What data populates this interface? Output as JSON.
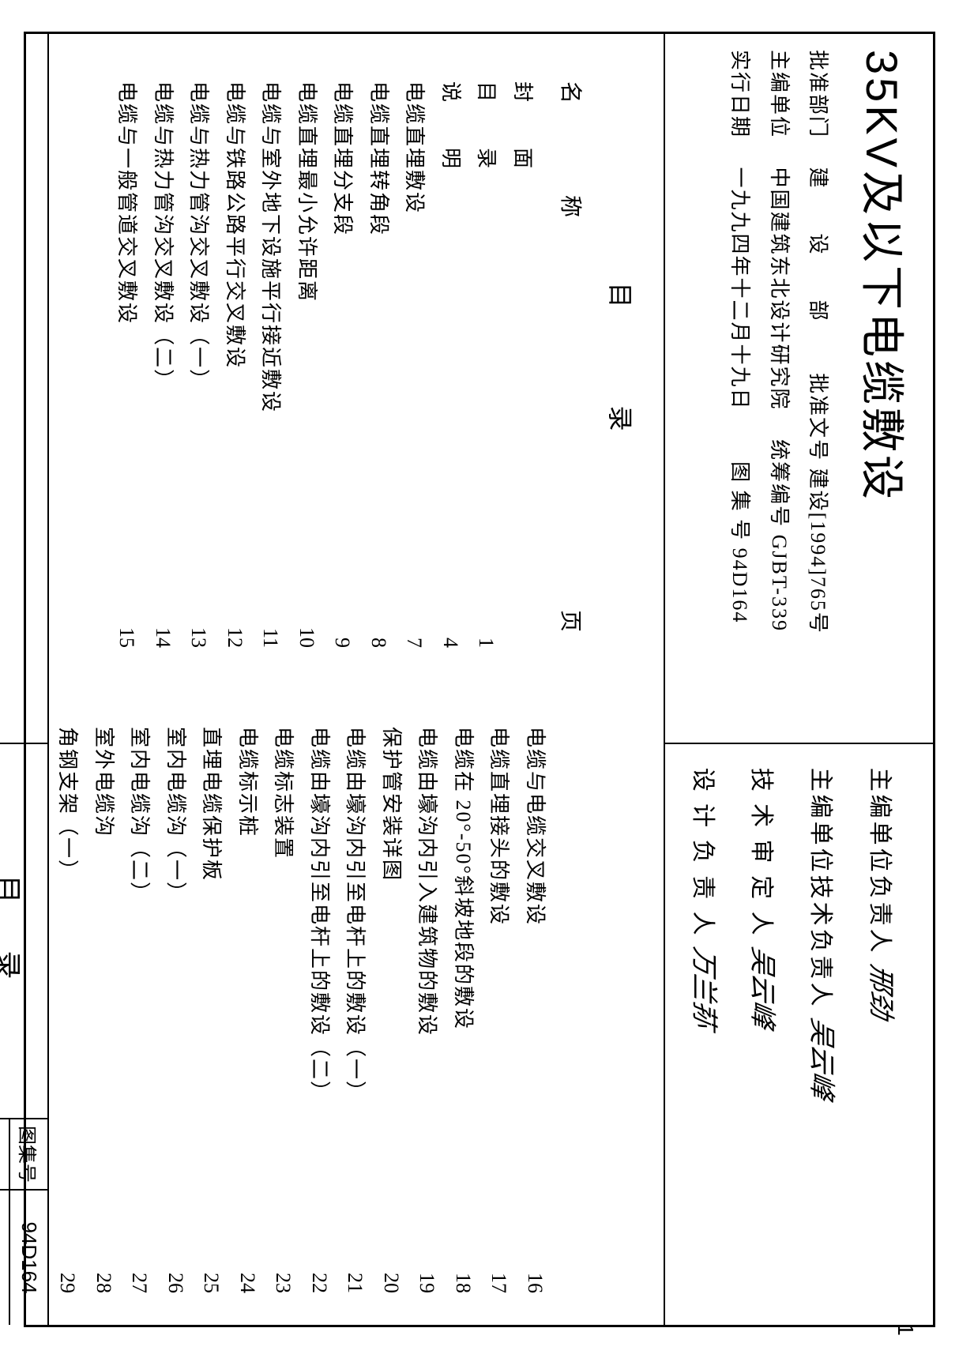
{
  "title": "35KV及以下电缆敷设",
  "meta": {
    "approve_dept_label": "批准部门",
    "approve_dept": "建　　设　　部",
    "approve_no_label": "批准文号",
    "approve_no": "建设[1994]765号",
    "editor_unit_label": "主编单位",
    "editor_unit": "中国建筑东北设计研究院",
    "series_no_label": "统筹编号",
    "series_no": "GJBT-339",
    "exec_date_label": "实行日期",
    "exec_date": "一九九四年十二月十九日",
    "atlas_no_label": "图 集 号",
    "atlas_no": "94D164"
  },
  "signatures": {
    "s1_label": "主编单位负责人",
    "s1_sig": "邢劲",
    "s2_label": "主编单位技术负责人",
    "s2_sig": "吴云峰",
    "s3_label": "技 术 审 定 人",
    "s3_sig": "吴云峰",
    "s4_label": "设 计 负 责 人",
    "s4_sig": "万兰荪"
  },
  "toc_heading": "目　　录",
  "col_name_label": "名　　称",
  "col_page_label": "页",
  "left_items": [
    {
      "label": "封　　面",
      "page": ""
    },
    {
      "label": "目　　录",
      "page": "1"
    },
    {
      "label": "说　　明",
      "page": "4"
    },
    {
      "label": "电缆直埋敷设",
      "page": "7"
    },
    {
      "label": "电缆直埋转角段",
      "page": "8"
    },
    {
      "label": "电缆直埋分支段",
      "page": "9"
    },
    {
      "label": "电缆直埋最小允许距离",
      "page": "10"
    },
    {
      "label": "电缆与室外地下设施平行接近敷设",
      "page": "11"
    },
    {
      "label": "电缆与铁路公路平行交叉敷设",
      "page": "12"
    },
    {
      "label": "电缆与热力管沟交叉敷设（一）",
      "page": "13"
    },
    {
      "label": "电缆与热力管沟交叉敷设（二）",
      "page": "14"
    },
    {
      "label": "电缆与一般管道交叉敷设",
      "page": "15"
    }
  ],
  "right_items": [
    {
      "label": "电缆与电缆交叉敷设",
      "page": "16"
    },
    {
      "label": "电缆直埋接头的敷设",
      "page": "17"
    },
    {
      "label": "电缆在 20°-50°斜坡地段的敷设",
      "page": "18"
    },
    {
      "label": "电缆由壕沟内引入建筑物的敷设",
      "page": "19"
    },
    {
      "label": "保护管安装详图",
      "page": "20"
    },
    {
      "label": "电缆由壕沟内引至电杆上的敷设（一）",
      "page": "21"
    },
    {
      "label": "电缆由壕沟内引至电杆上的敷设（二）",
      "page": "22"
    },
    {
      "label": "电缆标志装置",
      "page": "23"
    },
    {
      "label": "电缆标示桩",
      "page": "24"
    },
    {
      "label": "直埋电缆保护板",
      "page": "25"
    },
    {
      "label": "室内电缆沟（一）",
      "page": "26"
    },
    {
      "label": "室内电缆沟（二）",
      "page": "27"
    },
    {
      "label": "室外电缆沟",
      "page": "28"
    },
    {
      "label": "角钢支架（一）",
      "page": "29"
    }
  ],
  "footer": {
    "mulu": "目录",
    "atlas_label": "图集号",
    "atlas_val": "94D164",
    "page_label": "页",
    "page_val": "1"
  },
  "outer_page": "1"
}
